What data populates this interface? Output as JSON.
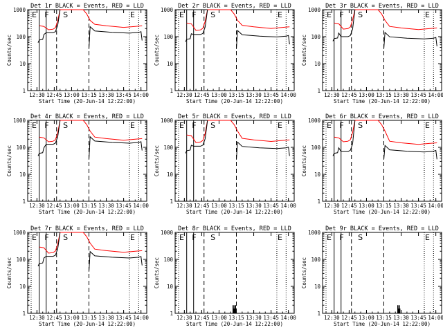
{
  "chart_data": {
    "type": "line",
    "ylabel": "Counts/sec",
    "xlabel": "Start Time (20-Jun-14 12:22:00)",
    "x_ticks": [
      "12:30",
      "12:45",
      "13:00",
      "13:15",
      "13:30",
      "13:45",
      "14:00"
    ],
    "y_ticks": [
      "1",
      "10",
      "100",
      "1000"
    ],
    "y_scale": "log",
    "ylim": [
      1,
      1000
    ],
    "series_names": [
      "Events",
      "LLD"
    ],
    "colors": {
      "events": "#000000",
      "lld": "#ff0000"
    },
    "markers": [
      "E",
      "F",
      "S",
      "E"
    ],
    "panels": [
      {
        "id": "1r",
        "title": "Det 1r BLACK = Events, RED = LLD",
        "has_data": true,
        "pre_events": 75,
        "pre_lld": 160,
        "base_events": 140,
        "base_lld": 180,
        "tail_events": 180,
        "tail_lld": 240
      },
      {
        "id": "2r",
        "title": "Det 2r BLACK = Events, RED = LLD",
        "has_data": true,
        "pre_events": 80,
        "pre_lld": 200,
        "base_events": 120,
        "base_lld": 170,
        "tail_events": 130,
        "tail_lld": 220
      },
      {
        "id": "3r",
        "title": "Det 3r BLACK = Events, RED = LLD",
        "has_data": true,
        "pre_events": 85,
        "pre_lld": 200,
        "base_events": 100,
        "base_lld": 190,
        "tail_events": 110,
        "tail_lld": 200
      },
      {
        "id": "4r",
        "title": "Det 4r BLACK = Events, RED = LLD",
        "has_data": true,
        "pre_events": 60,
        "pre_lld": 150,
        "base_events": 130,
        "base_lld": 160,
        "tail_events": 190,
        "tail_lld": 200
      },
      {
        "id": "5r",
        "title": "Det 5r BLACK = Events, RED = LLD",
        "has_data": true,
        "pre_events": 75,
        "pre_lld": 180,
        "base_events": 110,
        "base_lld": 150,
        "tail_events": 120,
        "tail_lld": 180
      },
      {
        "id": "6r",
        "title": "Det 6r BLACK = Events, RED = LLD",
        "has_data": true,
        "pre_events": 60,
        "pre_lld": 150,
        "base_events": 70,
        "base_lld": 160,
        "tail_events": 90,
        "tail_lld": 140
      },
      {
        "id": "7r",
        "title": "Det 7r BLACK = Events, RED = LLD",
        "has_data": true,
        "pre_events": 70,
        "pre_lld": 180,
        "base_events": 130,
        "base_lld": 170,
        "tail_events": 150,
        "tail_lld": 200
      },
      {
        "id": "8r",
        "title": "Det 8r BLACK = Events, RED = LLD",
        "has_data": false,
        "sparse_start": "13:12",
        "sparse_end": "13:15"
      },
      {
        "id": "9r",
        "title": "Det 9r BLACK = Events, RED = LLD",
        "has_data": false,
        "sparse_start": "13:27",
        "sparse_end": "13:29"
      }
    ]
  }
}
